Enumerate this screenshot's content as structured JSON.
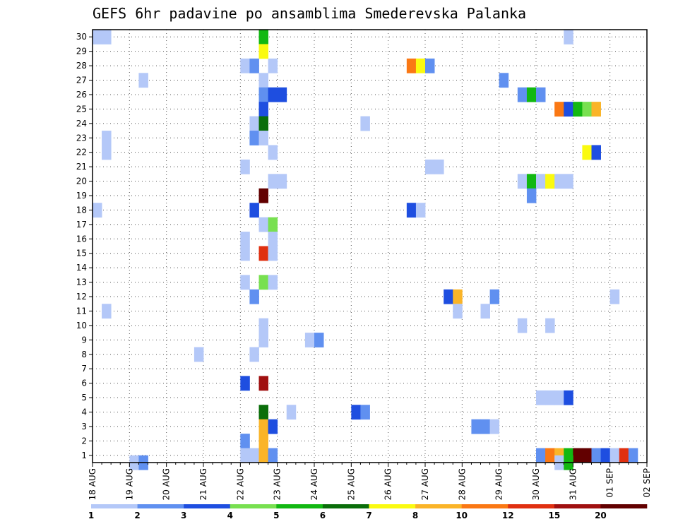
{
  "chart_data": {
    "type": "heatmap",
    "title": "GEFS 6hr padavine po ansamblima Smederevska Palanka",
    "x_tick_labels": [
      "18 AUG",
      "19 AUG",
      "20 AUG",
      "21 AUG",
      "22 AUG",
      "23 AUG",
      "24 AUG",
      "25 AUG",
      "26 AUG",
      "27 AUG",
      "28 AUG",
      "29 AUG",
      "30 AUG",
      "31 AUG",
      "01 SEP",
      "02 SEP"
    ],
    "y_tick_labels": [
      "1",
      "2",
      "3",
      "4",
      "5",
      "6",
      "7",
      "8",
      "9",
      "10",
      "11",
      "12",
      "13",
      "14",
      "15",
      "16",
      "17",
      "18",
      "19",
      "20",
      "21",
      "22",
      "23",
      "24",
      "25",
      "26",
      "27",
      "28",
      "29",
      "30"
    ],
    "xlim": [
      0,
      60
    ],
    "ylim": [
      0.5,
      30.5
    ],
    "grid": true,
    "colorbar": {
      "position": "bottom",
      "labels": [
        "1",
        "2",
        "3",
        "4",
        "5",
        "6",
        "7",
        "8",
        "10",
        "12",
        "15",
        "20"
      ],
      "colors": [
        "#b4c8f8",
        "#6090f0",
        "#1e4ee0",
        "#78e050",
        "#12b812",
        "#0a6e0a",
        "#fafa10",
        "#fab428",
        "#fa7814",
        "#e03010",
        "#a01010",
        "#620000"
      ]
    },
    "cells": [
      [
        0,
        30,
        0
      ],
      [
        1,
        30,
        0
      ],
      [
        18,
        30,
        4
      ],
      [
        51,
        30,
        0
      ],
      [
        18,
        29,
        6
      ],
      [
        16,
        28,
        0
      ],
      [
        17,
        28,
        1
      ],
      [
        19,
        28,
        0
      ],
      [
        34,
        28,
        8
      ],
      [
        35,
        28,
        6
      ],
      [
        36,
        28,
        1
      ],
      [
        5,
        27,
        0
      ],
      [
        18,
        27,
        0
      ],
      [
        44,
        27,
        1
      ],
      [
        18,
        26,
        1
      ],
      [
        19,
        26,
        2
      ],
      [
        20,
        26,
        2
      ],
      [
        46,
        26,
        1
      ],
      [
        47,
        26,
        4
      ],
      [
        48,
        26,
        1
      ],
      [
        18,
        25,
        2
      ],
      [
        50,
        25,
        8
      ],
      [
        51,
        25,
        2
      ],
      [
        52,
        25,
        4
      ],
      [
        53,
        25,
        3
      ],
      [
        54,
        25,
        7
      ],
      [
        17,
        24,
        0
      ],
      [
        18,
        24,
        5
      ],
      [
        29,
        24,
        0
      ],
      [
        1,
        23,
        0
      ],
      [
        17,
        23,
        1
      ],
      [
        18,
        23,
        0
      ],
      [
        1,
        22,
        0
      ],
      [
        19,
        22,
        0
      ],
      [
        53,
        22,
        6
      ],
      [
        54,
        22,
        2
      ],
      [
        16,
        21,
        0
      ],
      [
        36,
        21,
        0
      ],
      [
        37,
        21,
        0
      ],
      [
        19,
        20,
        0
      ],
      [
        20,
        20,
        0
      ],
      [
        46,
        20,
        0
      ],
      [
        47,
        20,
        4
      ],
      [
        48,
        20,
        0
      ],
      [
        49,
        20,
        6
      ],
      [
        50,
        20,
        0
      ],
      [
        51,
        20,
        0
      ],
      [
        18,
        19,
        11
      ],
      [
        47,
        19,
        1
      ],
      [
        0,
        18,
        0
      ],
      [
        17,
        18,
        2
      ],
      [
        34,
        18,
        2
      ],
      [
        35,
        18,
        0
      ],
      [
        18,
        17,
        0
      ],
      [
        19,
        17,
        3
      ],
      [
        16,
        16,
        0
      ],
      [
        19,
        16,
        0
      ],
      [
        16,
        15,
        0
      ],
      [
        18,
        15,
        9
      ],
      [
        19,
        15,
        0
      ],
      [
        16,
        13,
        0
      ],
      [
        18,
        13,
        3
      ],
      [
        19,
        13,
        0
      ],
      [
        17,
        12,
        1
      ],
      [
        38,
        12,
        2
      ],
      [
        39,
        12,
        7
      ],
      [
        43,
        12,
        1
      ],
      [
        56,
        12,
        0
      ],
      [
        1,
        11,
        0
      ],
      [
        39,
        11,
        0
      ],
      [
        42,
        11,
        0
      ],
      [
        18,
        10,
        0
      ],
      [
        46,
        10,
        0
      ],
      [
        49,
        10,
        0
      ],
      [
        18,
        9,
        0
      ],
      [
        23,
        9,
        0
      ],
      [
        24,
        9,
        1
      ],
      [
        11,
        8,
        0
      ],
      [
        17,
        8,
        0
      ],
      [
        16,
        6,
        2
      ],
      [
        18,
        6,
        10
      ],
      [
        48,
        5,
        0
      ],
      [
        49,
        5,
        0
      ],
      [
        50,
        5,
        0
      ],
      [
        51,
        5,
        2
      ],
      [
        18,
        4,
        5
      ],
      [
        21,
        4,
        0
      ],
      [
        28,
        4,
        2
      ],
      [
        29,
        4,
        1
      ],
      [
        18,
        3,
        7
      ],
      [
        19,
        3,
        2
      ],
      [
        41,
        3,
        1
      ],
      [
        42,
        3,
        1
      ],
      [
        43,
        3,
        0
      ],
      [
        16,
        2,
        1
      ],
      [
        18,
        2,
        7
      ],
      [
        16,
        1,
        0
      ],
      [
        17,
        1,
        0
      ],
      [
        18,
        1,
        7
      ],
      [
        19,
        1,
        1
      ],
      [
        48,
        1,
        1
      ],
      [
        49,
        1,
        8
      ],
      [
        50,
        1,
        7
      ],
      [
        51,
        1,
        4
      ],
      [
        52,
        1,
        11
      ],
      [
        53,
        1,
        11
      ],
      [
        54,
        1,
        1
      ],
      [
        55,
        1,
        2
      ],
      [
        56,
        1,
        0
      ],
      [
        57,
        1,
        9
      ],
      [
        58,
        1,
        1
      ],
      [
        4,
        0.5,
        0
      ],
      [
        5,
        0.5,
        1
      ],
      [
        50,
        0.5,
        0
      ],
      [
        51,
        0.5,
        4
      ]
    ]
  }
}
